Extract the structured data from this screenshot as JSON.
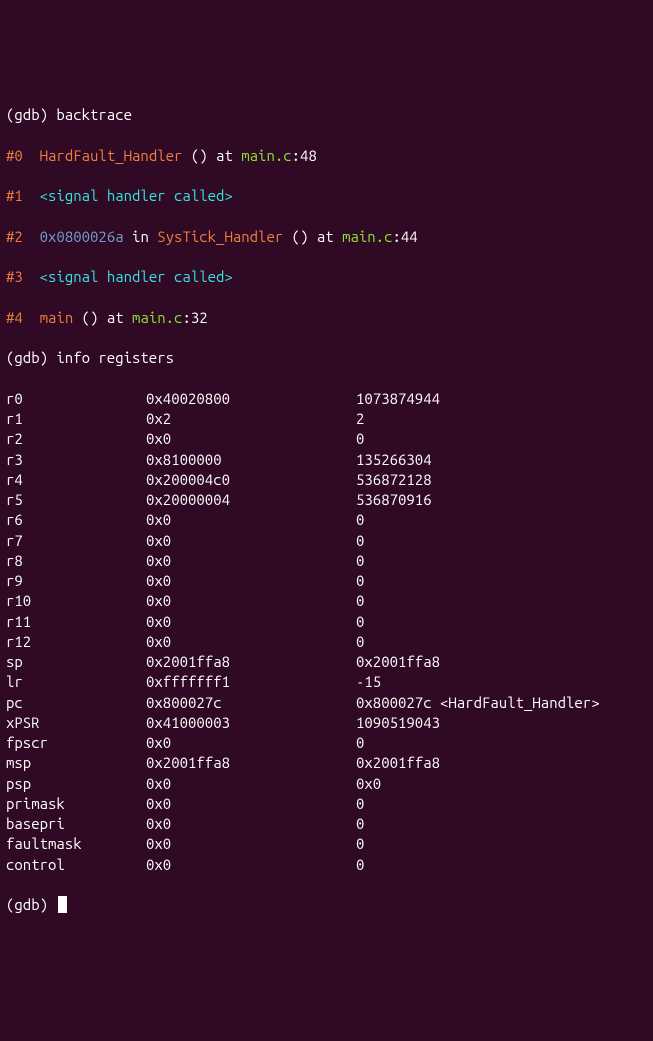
{
  "colors": {
    "background": "#300a24",
    "text": "#ffffff",
    "orange": "#ef7e3f",
    "green": "#8ae234",
    "cyan": "#34e2e2",
    "blue": "#729fcf"
  },
  "prompts": {
    "cmd1": "backtrace",
    "cmd2": "info registers",
    "gdb": "(gdb) "
  },
  "backtrace": [
    {
      "num": "#0",
      "addr": null,
      "func": "HardFault_Handler",
      "after_func": " () at ",
      "file": "main.c",
      "line": ":48"
    },
    {
      "num": "#1",
      "signal": "<signal handler called>"
    },
    {
      "num": "#2",
      "addr": "0x0800026a",
      "in": " in ",
      "func": "SysTick_Handler",
      "after_func": " () at ",
      "file": "main.c",
      "line": ":44"
    },
    {
      "num": "#3",
      "signal": "<signal handler called>"
    },
    {
      "num": "#4",
      "addr": null,
      "func": "main",
      "after_func": " () at ",
      "file": "main.c",
      "line": ":32"
    }
  ],
  "registers": [
    {
      "name": "r0",
      "hex": "0x40020800",
      "dec": "1073874944"
    },
    {
      "name": "r1",
      "hex": "0x2",
      "dec": "2"
    },
    {
      "name": "r2",
      "hex": "0x0",
      "dec": "0"
    },
    {
      "name": "r3",
      "hex": "0x8100000",
      "dec": "135266304"
    },
    {
      "name": "r4",
      "hex": "0x200004c0",
      "dec": "536872128"
    },
    {
      "name": "r5",
      "hex": "0x20000004",
      "dec": "536870916"
    },
    {
      "name": "r6",
      "hex": "0x0",
      "dec": "0"
    },
    {
      "name": "r7",
      "hex": "0x0",
      "dec": "0"
    },
    {
      "name": "r8",
      "hex": "0x0",
      "dec": "0"
    },
    {
      "name": "r9",
      "hex": "0x0",
      "dec": "0"
    },
    {
      "name": "r10",
      "hex": "0x0",
      "dec": "0"
    },
    {
      "name": "r11",
      "hex": "0x0",
      "dec": "0"
    },
    {
      "name": "r12",
      "hex": "0x0",
      "dec": "0"
    },
    {
      "name": "sp",
      "hex": "0x2001ffa8",
      "dec": "0x2001ffa8"
    },
    {
      "name": "lr",
      "hex": "0xfffffff1",
      "dec": "-15"
    },
    {
      "name": "pc",
      "hex": "0x800027c",
      "dec": "0x800027c <HardFault_Handler>"
    },
    {
      "name": "xPSR",
      "hex": "0x41000003",
      "dec": "1090519043"
    },
    {
      "name": "fpscr",
      "hex": "0x0",
      "dec": "0"
    },
    {
      "name": "msp",
      "hex": "0x2001ffa8",
      "dec": "0x2001ffa8"
    },
    {
      "name": "psp",
      "hex": "0x0",
      "dec": "0x0"
    },
    {
      "name": "primask",
      "hex": "0x0",
      "dec": "0"
    },
    {
      "name": "basepri",
      "hex": "0x0",
      "dec": "0"
    },
    {
      "name": "faultmask",
      "hex": "0x0",
      "dec": "0"
    },
    {
      "name": "control",
      "hex": "0x0",
      "dec": "0"
    }
  ]
}
